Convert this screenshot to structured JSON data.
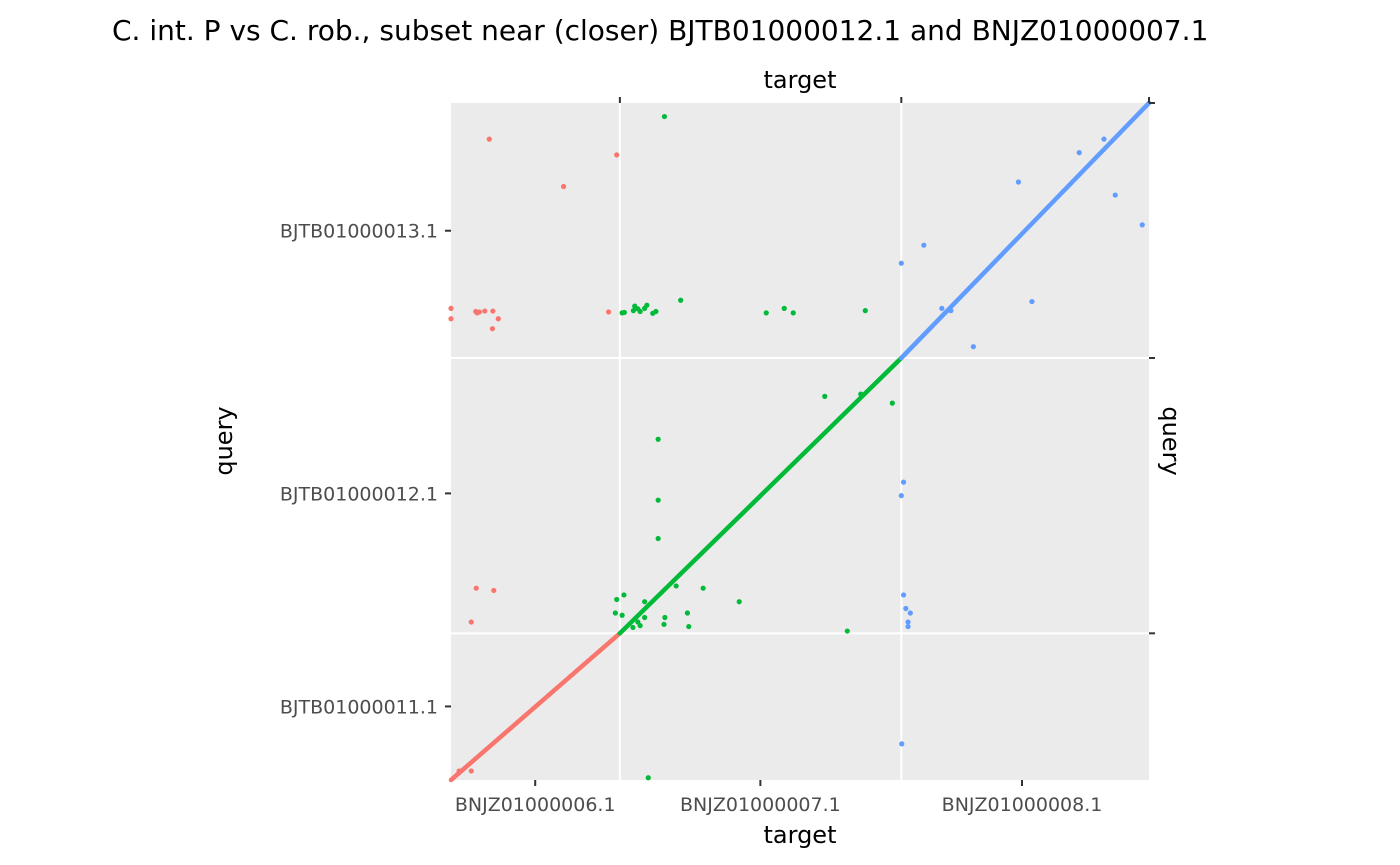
{
  "chart_data": {
    "type": "scatter",
    "title": "C. int. P vs C. rob., subset near (closer) BJTB01000012.1 and BNJZ01000007.1",
    "xlabel": "target",
    "xlabel_top": "target",
    "ylabel": "query",
    "ylabel_right": "query",
    "x_range_bp": [
      0,
      1550000
    ],
    "y_range_bp": [
      0,
      1500000
    ],
    "grid": true,
    "background": "#ebebeb",
    "grid_color": "#ffffff",
    "target_sequences": [
      {
        "name": "BNJZ01000006.1",
        "start": 0,
        "end": 375000
      },
      {
        "name": "BNJZ01000007.1",
        "start": 375000,
        "end": 1000000
      },
      {
        "name": "BNJZ01000008.1",
        "start": 1000000,
        "end": 1550000
      }
    ],
    "query_sequences": [
      {
        "name": "BJTB01000011.1",
        "start": 0,
        "end": 325000
      },
      {
        "name": "BJTB01000012.1",
        "start": 325000,
        "end": 935000
      },
      {
        "name": "BJTB01000013.1",
        "start": 935000,
        "end": 1500000
      }
    ],
    "x_tick_labels": [
      "BNJZ01000006.1",
      "BNJZ01000007.1",
      "BNJZ01000008.1"
    ],
    "x_tick_values": [
      187000,
      687000,
      1268000
    ],
    "y_tick_labels": [
      "BJTB01000011.1",
      "BJTB01000012.1",
      "BJTB01000013.1"
    ],
    "y_tick_values": [
      163000,
      635000,
      1217000
    ],
    "series": [
      {
        "name": "BJTB01000011.1",
        "color": "#f8766d",
        "diagonal": [
          [
            0,
            0
          ],
          [
            375000,
            325000
          ]
        ],
        "x": [
          18000,
          45000,
          45000,
          56000,
          95000,
          58000,
          85000,
          250000,
          350000,
          368000,
          92000,
          63000,
          55000,
          75000,
          0,
          0,
          93000,
          105000
        ],
        "y": [
          20000,
          20000,
          350000,
          425000,
          420000,
          1035000,
          1420000,
          1315000,
          1037000,
          1385000,
          1000000,
          1037000,
          1038000,
          1039000,
          1045000,
          1022000,
          1039000,
          1022000
        ]
      },
      {
        "name": "BJTB01000012.1",
        "color": "#00ba38",
        "diagonal": [
          [
            375000,
            325000
          ],
          [
            1000000,
            935000
          ]
        ],
        "x": [
          438000,
          415000,
          380000,
          404000,
          420000,
          430000,
          473000,
          460000,
          460000,
          460000,
          500000,
          525000,
          528000,
          560000,
          640000,
          700000,
          740000,
          760000,
          830000,
          880000,
          920000,
          910000,
          980000,
          380000,
          385000,
          405000,
          408000,
          415000,
          420000,
          430000,
          435000,
          448000,
          455000,
          365000,
          368000,
          384000,
          430000,
          475000,
          474000
        ],
        "y": [
          5000,
          350000,
          365000,
          338000,
          342000,
          360000,
          345000,
          535000,
          620000,
          755000,
          430000,
          370000,
          340000,
          425000,
          395000,
          1035000,
          1045000,
          1035000,
          850000,
          330000,
          1040000,
          855000,
          835000,
          1035000,
          1036000,
          1040000,
          1050000,
          1044000,
          1038000,
          1045000,
          1052000,
          1034000,
          1038000,
          370000,
          400000,
          410000,
          395000,
          360000,
          1470000
        ],
        "extra": [
          [
            510000,
            1063000
          ]
        ]
      },
      {
        "name": "BJTB01000013.1",
        "color": "#619cff",
        "diagonal": [
          [
            1000000,
            935000
          ],
          [
            1550000,
            1500000
          ]
        ],
        "x": [
          1000000,
          1005000,
          1015000,
          1005000,
          1015000,
          1020000,
          1010000,
          1001000,
          1110000,
          1290000,
          1260000,
          1395000,
          1475000,
          1450000,
          1535000,
          1160000,
          1090000,
          1050000,
          1000000
        ],
        "y": [
          630000,
          660000,
          340000,
          410000,
          350000,
          370000,
          380000,
          80000,
          1040000,
          1060000,
          1325000,
          1390000,
          1296000,
          1420000,
          1230000,
          960000,
          1045000,
          1185000,
          1145000
        ]
      }
    ]
  }
}
